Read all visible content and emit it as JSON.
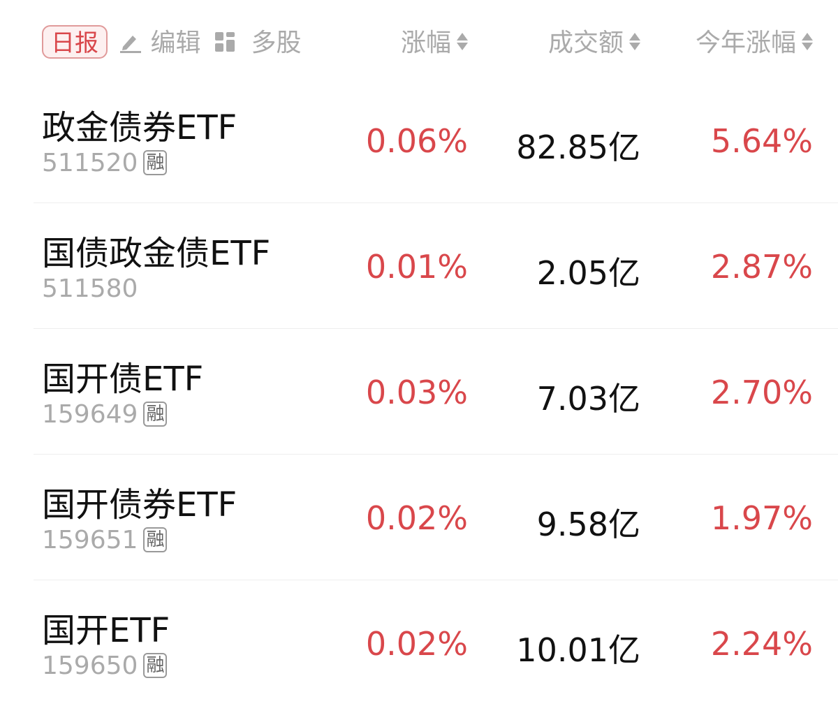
{
  "header": {
    "daily_label": "日报",
    "edit_label": "编辑",
    "multi_label": "多股",
    "columns": [
      "涨幅",
      "成交额",
      "今年涨幅"
    ]
  },
  "colors": {
    "up": "#d9474b",
    "muted": "#aaaaaa",
    "text": "#111111"
  },
  "rows": [
    {
      "name": "政金债券ETF",
      "code": "511520",
      "badge": "融",
      "change": "0.06%",
      "amount": "82.85亿",
      "ytd": "5.64%"
    },
    {
      "name": "国债政金债ETF",
      "code": "511580",
      "badge": null,
      "change": "0.01%",
      "amount": "2.05亿",
      "ytd": "2.87%"
    },
    {
      "name": "国开债ETF",
      "code": "159649",
      "badge": "融",
      "change": "0.03%",
      "amount": "7.03亿",
      "ytd": "2.70%"
    },
    {
      "name": "国开债券ETF",
      "code": "159651",
      "badge": "融",
      "change": "0.02%",
      "amount": "9.58亿",
      "ytd": "1.97%"
    },
    {
      "name": "国开ETF",
      "code": "159650",
      "badge": "融",
      "change": "0.02%",
      "amount": "10.01亿",
      "ytd": "2.24%"
    }
  ]
}
